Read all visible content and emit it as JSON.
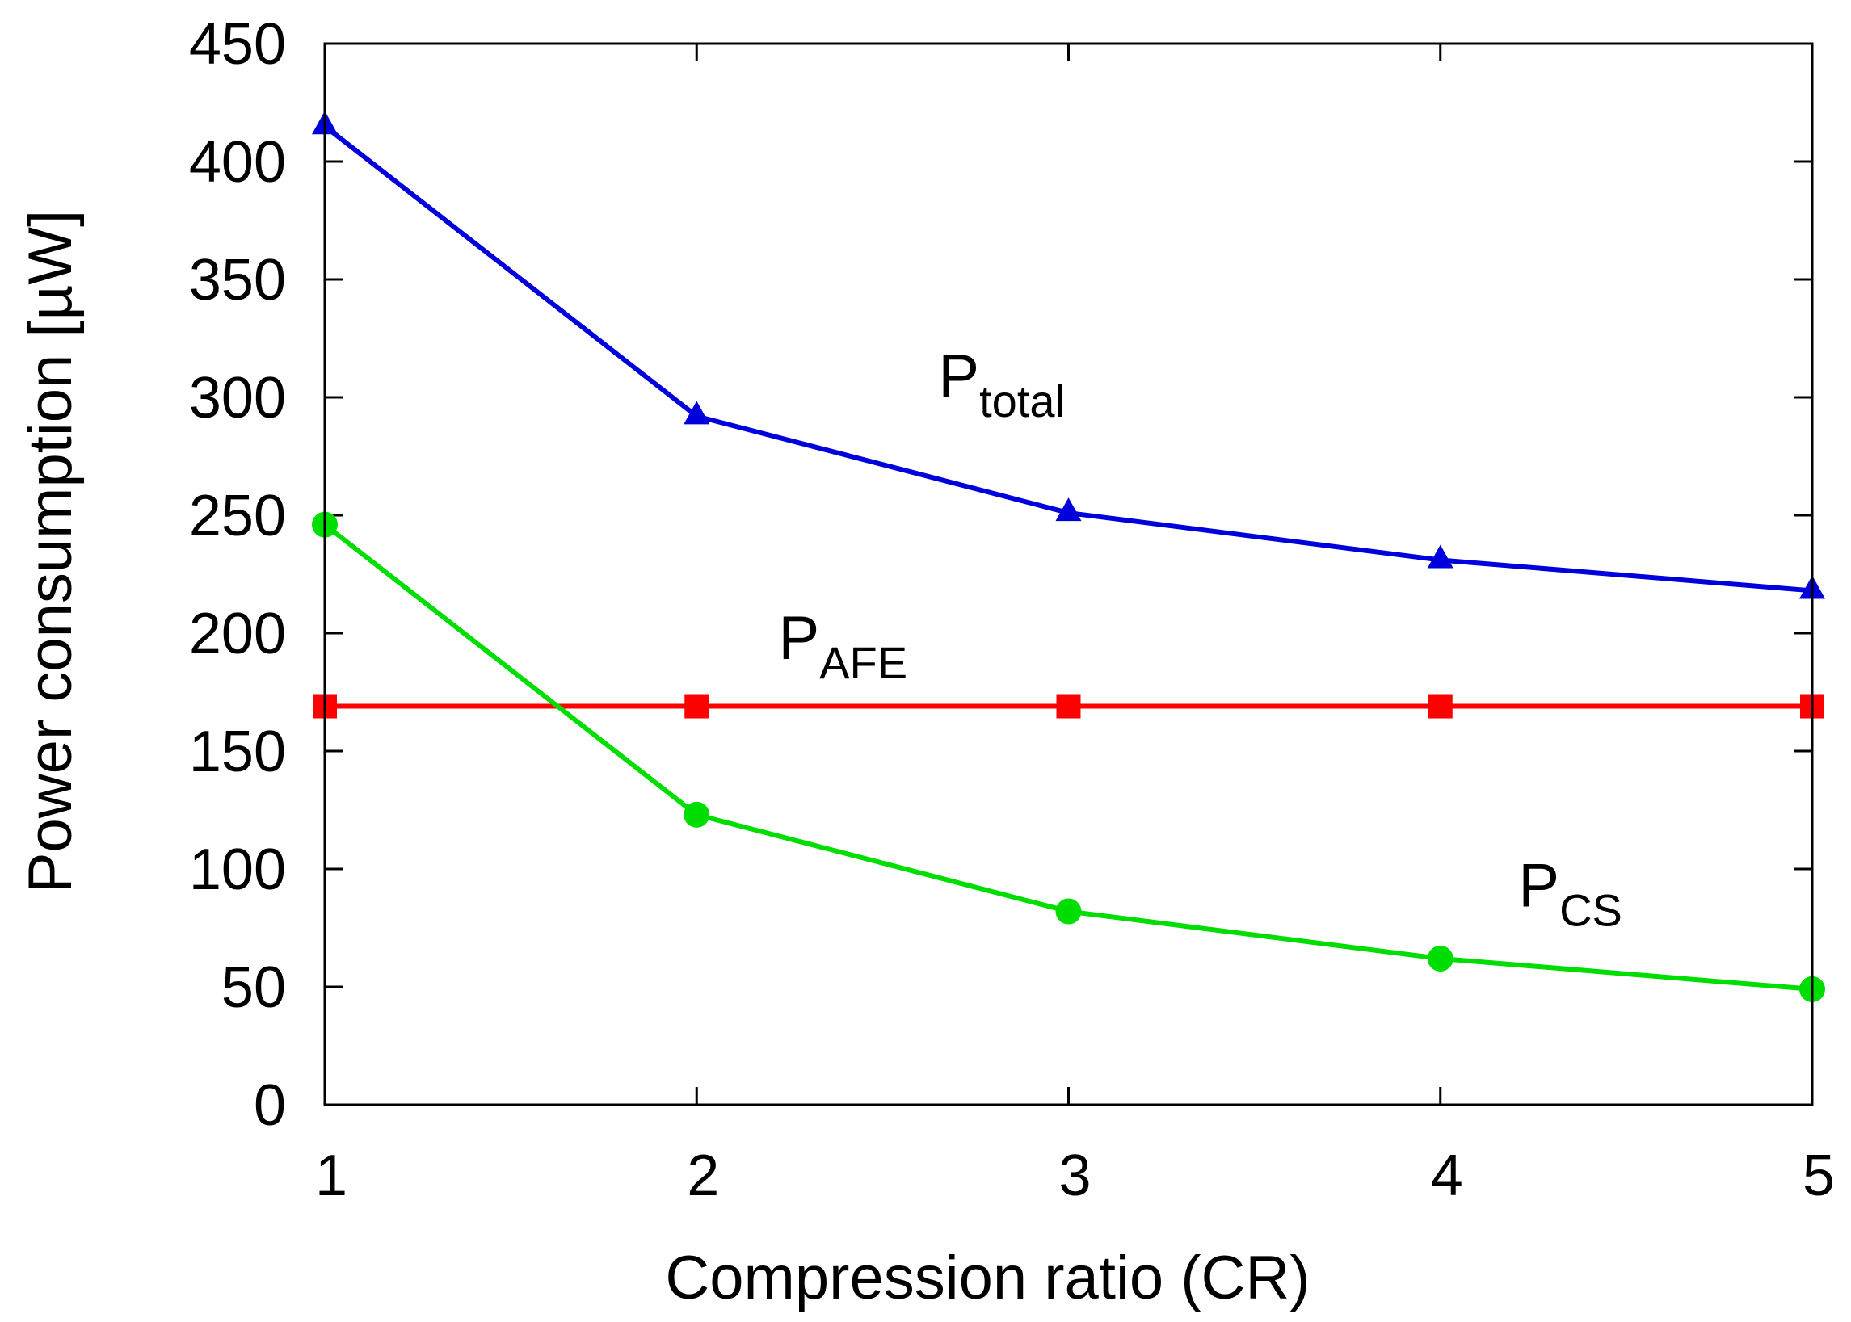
{
  "chart_data": {
    "type": "line",
    "title": "",
    "xlabel": "Compression ratio (CR)",
    "ylabel": "Power consumption [µW]",
    "xlim": [
      1,
      5
    ],
    "ylim": [
      0,
      450
    ],
    "x_ticks": [
      1,
      2,
      3,
      4,
      5
    ],
    "y_ticks": [
      0,
      50,
      100,
      150,
      200,
      250,
      300,
      350,
      400,
      450
    ],
    "grid": false,
    "legend": "none",
    "x": [
      1,
      2,
      3,
      4,
      5
    ],
    "series": [
      {
        "name": "Ptotal",
        "label_main": "P",
        "label_sub": "total",
        "color": "#0000dd",
        "marker": "triangle",
        "values": [
          415,
          292,
          251,
          231,
          218
        ]
      },
      {
        "name": "PAFE",
        "label_main": "P",
        "label_sub": "AFE",
        "color": "#ff0000",
        "marker": "square",
        "values": [
          169,
          169,
          169,
          169,
          169
        ]
      },
      {
        "name": "PCS",
        "label_main": "P",
        "label_sub": "CS",
        "color": "#00dd00",
        "marker": "circle",
        "values": [
          246,
          123,
          82,
          62,
          49
        ]
      }
    ]
  }
}
